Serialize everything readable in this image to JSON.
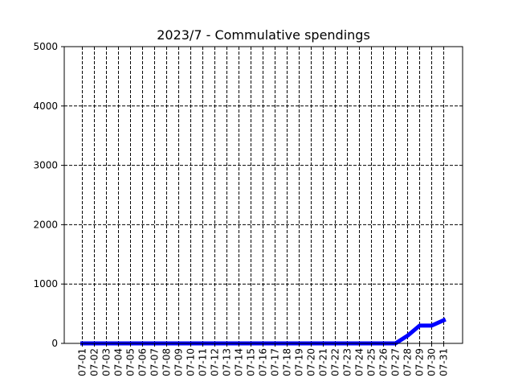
{
  "chart_data": {
    "type": "line",
    "title": "2023/7 - Commulative spendings",
    "xlabel": "",
    "ylabel": "",
    "ylim": [
      0,
      5000
    ],
    "yticks": [
      0,
      1000,
      2000,
      3000,
      4000,
      5000
    ],
    "grid": "dashed, both axes",
    "legend": "none",
    "x": [
      "07-01",
      "07-02",
      "07-03",
      "07-04",
      "07-05",
      "07-06",
      "07-07",
      "07-08",
      "07-09",
      "07-10",
      "07-11",
      "07-12",
      "07-13",
      "07-14",
      "07-15",
      "07-16",
      "07-17",
      "07-18",
      "07-19",
      "07-20",
      "07-21",
      "07-22",
      "07-23",
      "07-24",
      "07-25",
      "07-26",
      "07-27",
      "07-28",
      "07-29",
      "07-30",
      "07-31"
    ],
    "series": [
      {
        "color": "#0000ff",
        "values": [
          0,
          0,
          0,
          0,
          0,
          0,
          0,
          0,
          0,
          0,
          0,
          0,
          0,
          0,
          0,
          0,
          0,
          0,
          0,
          0,
          0,
          0,
          0,
          0,
          0,
          0,
          0,
          130,
          300,
          300,
          390
        ]
      }
    ]
  }
}
